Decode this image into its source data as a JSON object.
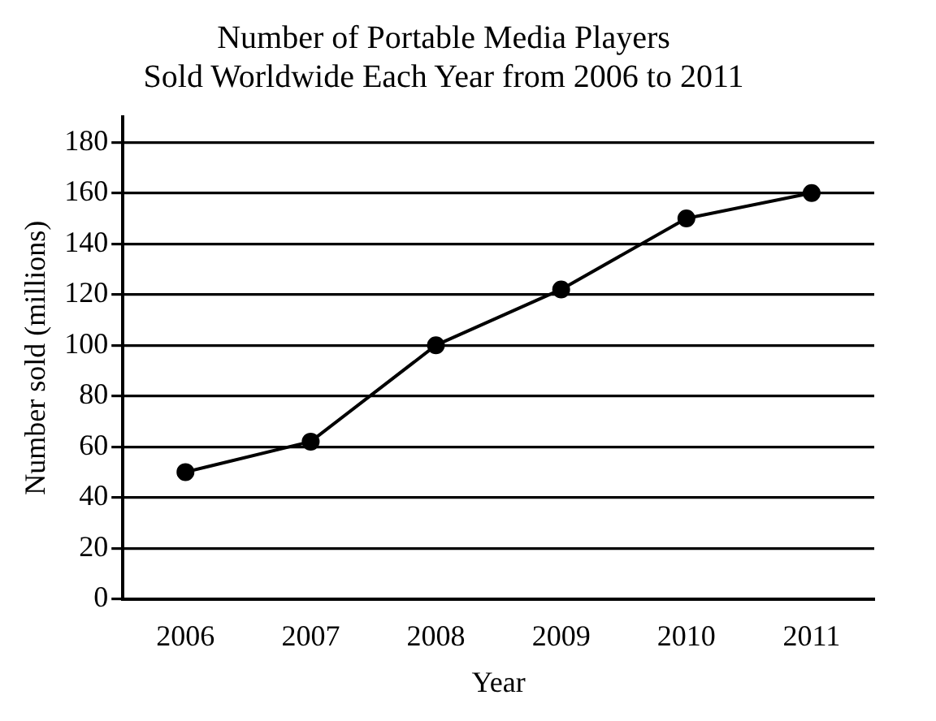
{
  "chart_data": {
    "type": "line",
    "title": "Number of Portable Media Players\nSold Worldwide Each Year from 2006 to 2011",
    "xlabel": "Year",
    "ylabel": "Number sold (millions)",
    "categories": [
      "2006",
      "2007",
      "2008",
      "2009",
      "2010",
      "2011"
    ],
    "series": [
      {
        "color": "#000000",
        "values": [
          50,
          62,
          100,
          122,
          150,
          160
        ]
      }
    ],
    "ylim": [
      0,
      190
    ],
    "yticks": [
      0,
      20,
      40,
      60,
      80,
      100,
      120,
      140,
      160,
      180
    ],
    "grid": "y",
    "legend": false,
    "marker": "circle",
    "line_style": "solid"
  }
}
